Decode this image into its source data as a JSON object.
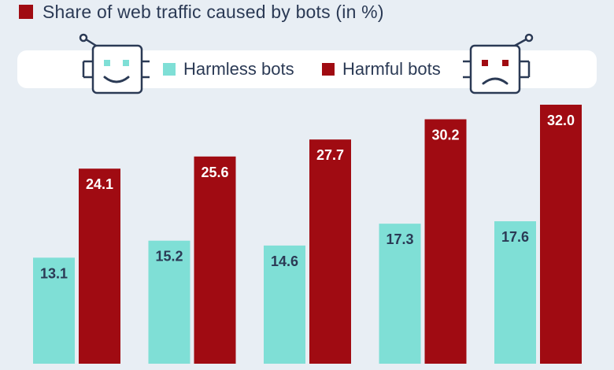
{
  "subtitle": "Share of web traffic caused by bots (in %)",
  "legend": {
    "harmless_label": "Harmless bots",
    "harmful_label": "Harmful bots"
  },
  "colors": {
    "harmless": "#7fdfd6",
    "harmful": "#a00b12",
    "text_dark": "#2b3a55",
    "background": "#e8eef4"
  },
  "icons": {
    "happy_robot": "happy-robot-icon",
    "sad_robot": "sad-robot-icon"
  },
  "chart_data": {
    "type": "bar",
    "categories": [
      "",
      "",
      "",
      "",
      ""
    ],
    "series": [
      {
        "name": "Harmless bots",
        "values": [
          13.1,
          15.2,
          14.6,
          17.3,
          17.6
        ]
      },
      {
        "name": "Harmful bots",
        "values": [
          24.1,
          25.6,
          27.7,
          30.2,
          32.0
        ]
      }
    ],
    "title": "",
    "subtitle": "Share of web traffic caused by bots (in %)",
    "value_labels": {
      "harmless": [
        "13.1",
        "15.2",
        "14.6",
        "17.3",
        "17.6"
      ],
      "harmful": [
        "24.1",
        "25.6",
        "27.7",
        "30.2",
        "32.0"
      ]
    },
    "ylim": [
      0,
      32.0
    ],
    "grid": false,
    "legend_position": "top"
  }
}
